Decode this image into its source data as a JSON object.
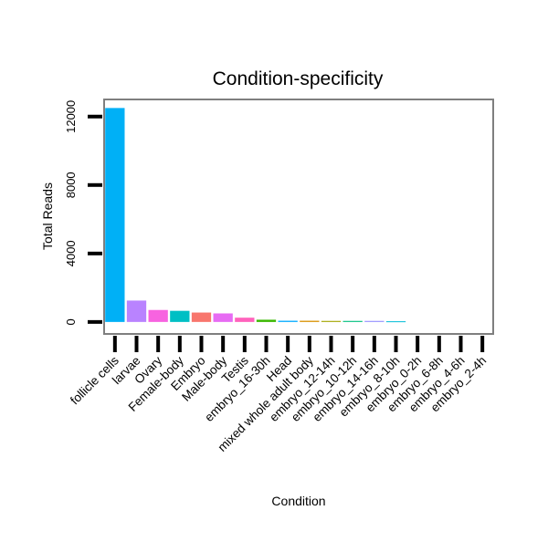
{
  "chart_data": {
    "type": "bar",
    "title": "Condition-specificity",
    "xlabel": "Condition",
    "ylabel": "Total Reads",
    "ylim": [
      -700,
      13000
    ],
    "yticks": [
      0,
      4000,
      8000,
      12000
    ],
    "grid": true,
    "legend": "none",
    "categories": [
      "follicle cells",
      "larvae",
      "Ovary",
      "Female-body",
      "Embryo",
      "Male-body",
      "Testis",
      "embryo_16-30h",
      "Head",
      "mixed whole adult body",
      "embryo_12-14h",
      "embryo_10-12h",
      "embryo_14-16h",
      "embryo_8-10h",
      "embryo_0-2h",
      "embryo_6-8h",
      "embryo_4-6h",
      "embryo_2-4h"
    ],
    "values": [
      12500,
      1250,
      700,
      650,
      550,
      500,
      250,
      130,
      70,
      70,
      60,
      60,
      60,
      40,
      0,
      0,
      0,
      0
    ],
    "colors": [
      "#00b0f6",
      "#b983ff",
      "#f763e0",
      "#00bfc4",
      "#f8766d",
      "#e76bf3",
      "#ff62bc",
      "#39b600",
      "#00a9ff",
      "#d89000",
      "#a3a500",
      "#00bf7d",
      "#9590ff",
      "#00bcd8",
      "#e58700",
      "#ff6a98",
      "#00c0af",
      "#6bb100"
    ]
  }
}
